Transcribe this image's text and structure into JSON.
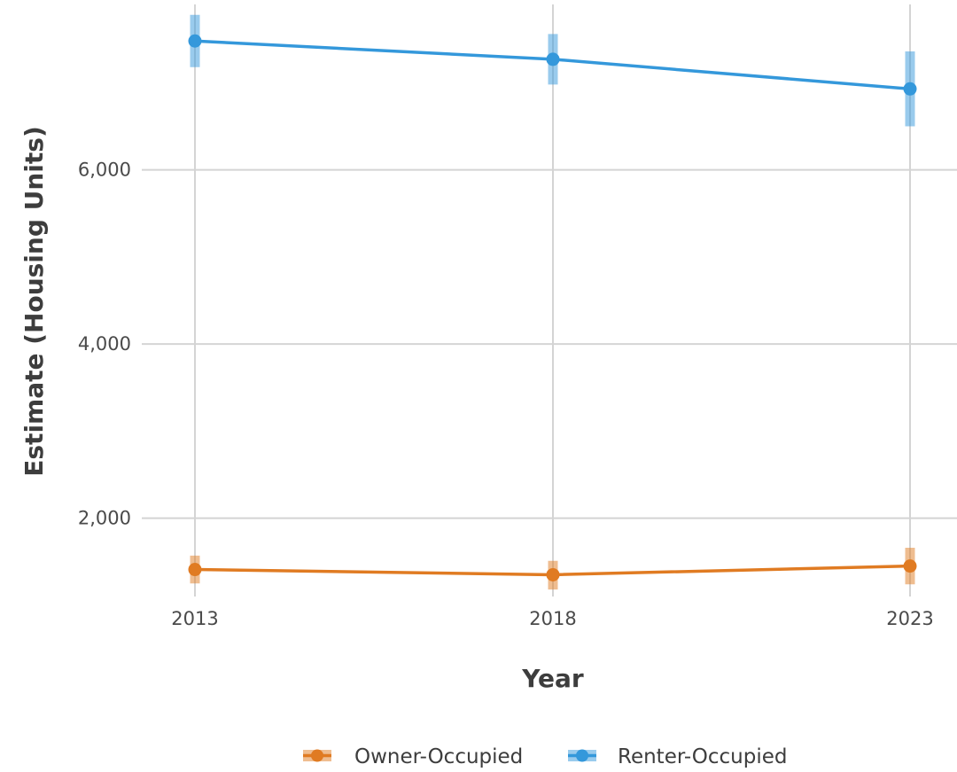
{
  "chart_data": {
    "type": "line",
    "title": "",
    "xlabel": "Year",
    "ylabel": "Estimate (Housing Units)",
    "categories": [
      "2013",
      "2018",
      "2023"
    ],
    "ylim": [
      1100,
      7900
    ],
    "yticks": [
      2000,
      4000,
      6000
    ],
    "ytick_labels": [
      "2,000",
      "4,000",
      "6,000"
    ],
    "grid": true,
    "legend_position": "bottom",
    "series": [
      {
        "name": "Owner-Occupied",
        "color": "#E07B22",
        "values": [
          1410,
          1350,
          1450
        ],
        "error_low": [
          1250,
          1180,
          1240
        ],
        "error_high": [
          1570,
          1510,
          1660
        ]
      },
      {
        "name": "Renter-Occupied",
        "color": "#3498DB",
        "values": [
          7480,
          7270,
          6930
        ],
        "error_low": [
          7180,
          6980,
          6500
        ],
        "error_high": [
          7780,
          7560,
          7360
        ]
      }
    ]
  }
}
